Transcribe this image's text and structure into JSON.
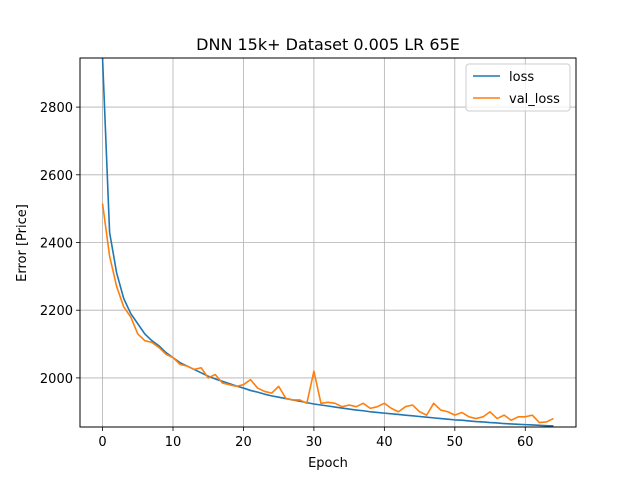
{
  "chart_data": {
    "type": "line",
    "title": "DNN 15k+ Dataset 0.005 LR 65E",
    "xlabel": "Epoch",
    "ylabel": "Error [Price]",
    "xlim": [
      -3.2,
      67.2
    ],
    "ylim": [
      1855,
      2945
    ],
    "xticks": [
      0,
      10,
      20,
      30,
      40,
      50,
      60
    ],
    "yticks": [
      2000,
      2200,
      2400,
      2600,
      2800
    ],
    "grid": true,
    "legend_position": "upper right",
    "series": [
      {
        "name": "loss",
        "color": "#1f77b4",
        "x": [
          0,
          1,
          2,
          3,
          4,
          5,
          6,
          7,
          8,
          9,
          10,
          11,
          12,
          13,
          14,
          15,
          16,
          17,
          18,
          19,
          20,
          21,
          22,
          23,
          24,
          25,
          26,
          27,
          28,
          29,
          30,
          31,
          32,
          33,
          34,
          35,
          36,
          37,
          38,
          39,
          40,
          41,
          42,
          43,
          44,
          45,
          46,
          47,
          48,
          49,
          50,
          51,
          52,
          53,
          54,
          55,
          56,
          57,
          58,
          59,
          60,
          61,
          62,
          63,
          64
        ],
        "values": [
          2945,
          2430,
          2310,
          2235,
          2190,
          2160,
          2130,
          2110,
          2095,
          2075,
          2060,
          2045,
          2035,
          2025,
          2015,
          2005,
          1997,
          1990,
          1983,
          1976,
          1970,
          1963,
          1958,
          1952,
          1947,
          1943,
          1939,
          1935,
          1931,
          1927,
          1923,
          1920,
          1917,
          1914,
          1911,
          1908,
          1905,
          1903,
          1900,
          1898,
          1896,
          1894,
          1892,
          1890,
          1888,
          1886,
          1884,
          1882,
          1880,
          1878,
          1876,
          1875,
          1873,
          1871,
          1870,
          1868,
          1867,
          1865,
          1864,
          1863,
          1862,
          1861,
          1860,
          1859,
          1858
        ]
      },
      {
        "name": "val_loss",
        "color": "#ff7f0e",
        "x": [
          0,
          1,
          2,
          3,
          4,
          5,
          6,
          7,
          8,
          9,
          10,
          11,
          12,
          13,
          14,
          15,
          16,
          17,
          18,
          19,
          20,
          21,
          22,
          23,
          24,
          25,
          26,
          27,
          28,
          29,
          30,
          31,
          32,
          33,
          34,
          35,
          36,
          37,
          38,
          39,
          40,
          41,
          42,
          43,
          44,
          45,
          46,
          47,
          48,
          49,
          50,
          51,
          52,
          53,
          54,
          55,
          56,
          57,
          58,
          59,
          60,
          61,
          62,
          63,
          64
        ],
        "values": [
          2515,
          2360,
          2270,
          2210,
          2180,
          2130,
          2110,
          2105,
          2090,
          2070,
          2060,
          2040,
          2035,
          2025,
          2030,
          2000,
          2010,
          1985,
          1980,
          1975,
          1980,
          1995,
          1970,
          1960,
          1955,
          1975,
          1940,
          1935,
          1935,
          1925,
          2020,
          1925,
          1928,
          1925,
          1915,
          1920,
          1915,
          1925,
          1910,
          1915,
          1925,
          1910,
          1900,
          1915,
          1920,
          1900,
          1890,
          1925,
          1905,
          1900,
          1890,
          1898,
          1885,
          1880,
          1885,
          1900,
          1880,
          1890,
          1875,
          1885,
          1885,
          1890,
          1868,
          1870,
          1880
        ]
      }
    ]
  }
}
